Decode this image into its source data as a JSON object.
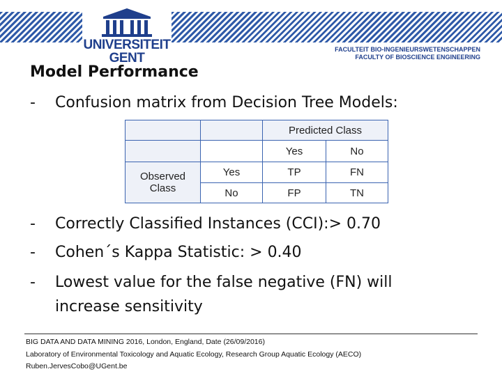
{
  "header": {
    "logo_line1": "UNIVERSITEIT",
    "logo_line2": "GENT",
    "faculty_line1": "FACULTEIT BIO-INGENIEURSWETENSCHAPPEN",
    "faculty_line2": "FACULTY OF BIOSCIENCE ENGINEERING",
    "accent_color": "#2f5aa8",
    "brand_color": "#1f3f8c"
  },
  "slide": {
    "title": "Model Performance",
    "intro_bullet": "Confusion matrix from Decision Tree Models:",
    "bullets": [
      "Correctly Classified Instances (CCI):> 0.70",
      "Cohen´s Kappa Statistic: > 0.40",
      "Lowest value for the false negative (FN) will"
    ],
    "bullet_continuation": "increase sensitivity",
    "dash": "-"
  },
  "matrix": {
    "predicted_header": "Predicted Class",
    "predicted_labels": [
      "Yes",
      "No"
    ],
    "observed_header_line1": "Observed",
    "observed_header_line2": "Class",
    "observed_labels": [
      "Yes",
      "No"
    ],
    "cells": [
      [
        "TP",
        "FN"
      ],
      [
        "FP",
        "TN"
      ]
    ]
  },
  "footer": {
    "line1": "BIG DATA AND DATA MINING 2016, London, England, Date (26/09/2016)",
    "line2": "Laboratory of Environmental Toxicology and Aquatic Ecology, Research Group Aquatic Ecology (AECO)",
    "line3": "Ruben.JervesCobo@UGent.be"
  }
}
